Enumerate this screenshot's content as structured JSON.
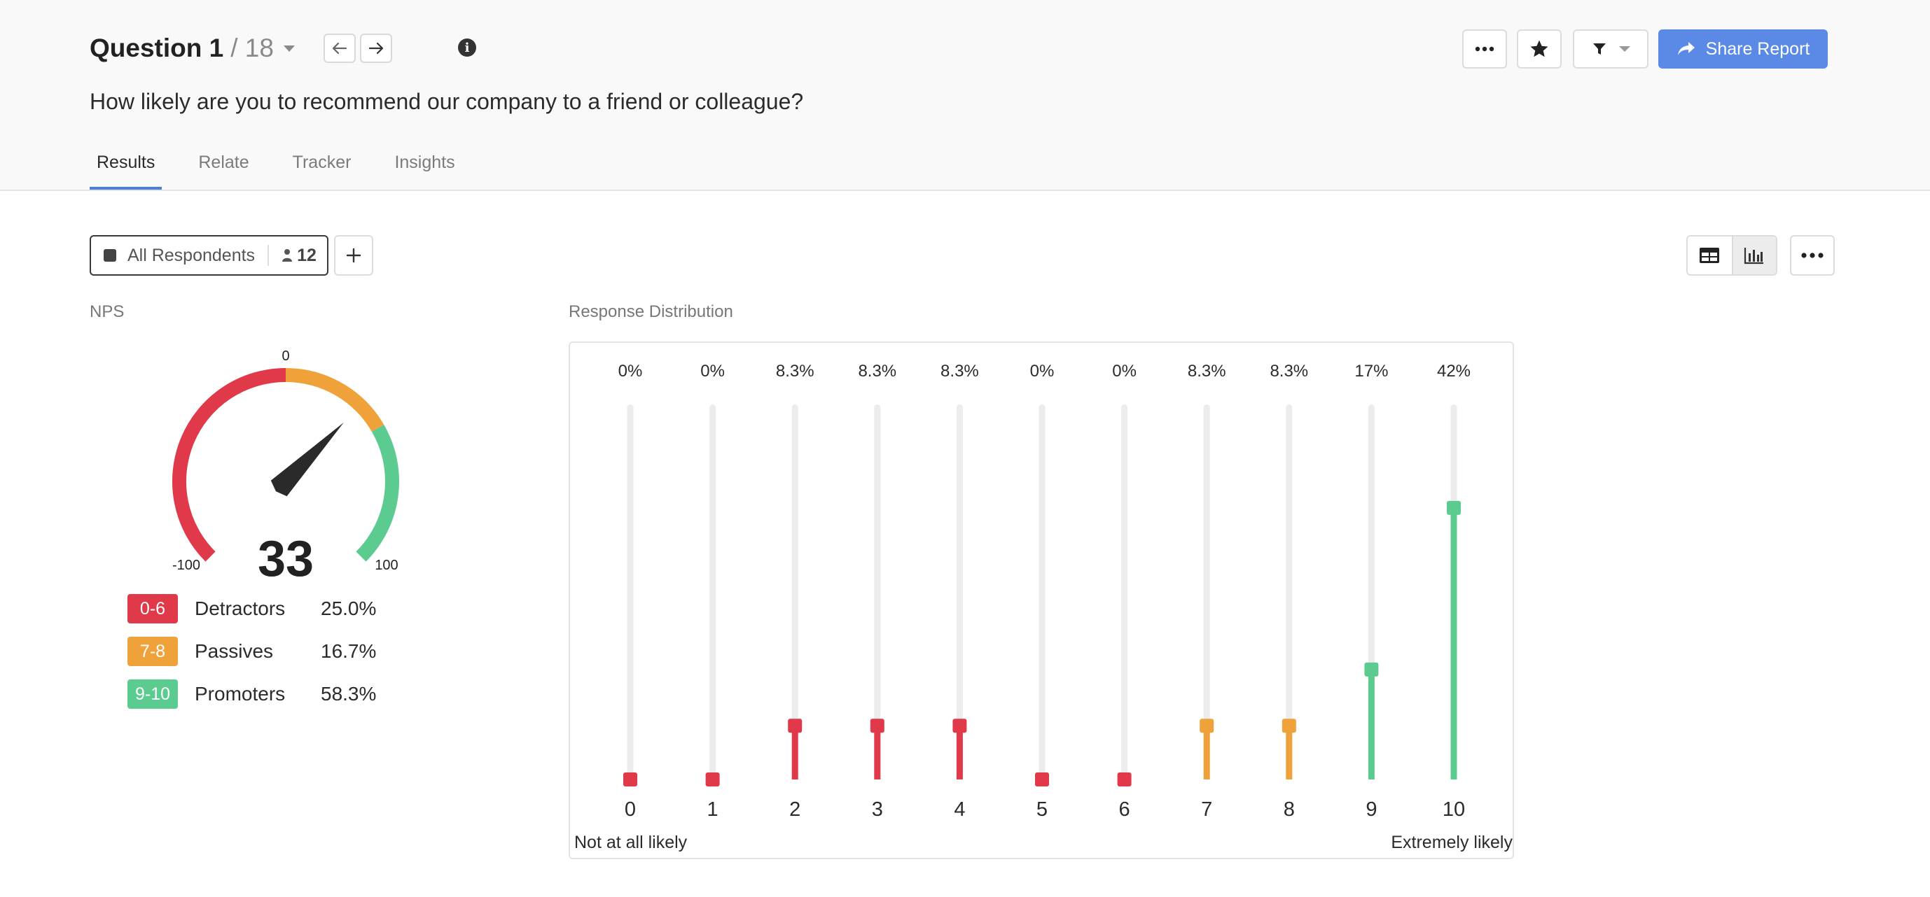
{
  "header": {
    "question_number": "Question 1",
    "question_total": "/ 18",
    "info_symbol": "i",
    "question_text": "How likely are you to recommend our company to a friend or colleague?",
    "share_label": "Share Report"
  },
  "tabs": [
    {
      "label": "Results",
      "active": true
    },
    {
      "label": "Relate",
      "active": false
    },
    {
      "label": "Tracker",
      "active": false
    },
    {
      "label": "Insights",
      "active": false
    }
  ],
  "segment": {
    "label": "All Respondents",
    "count": "12"
  },
  "nps": {
    "section_label": "NPS",
    "score": "33",
    "score_value": 33,
    "min_label": "-100",
    "mid_label": "0",
    "max_label": "100",
    "groups": [
      {
        "range": "0-6",
        "name": "Detractors",
        "pct": "25.0%",
        "color": "#e03a4a"
      },
      {
        "range": "7-8",
        "name": "Passives",
        "pct": "16.7%",
        "color": "#f0a23a"
      },
      {
        "range": "9-10",
        "name": "Promoters",
        "pct": "58.3%",
        "color": "#5ccb8f"
      }
    ]
  },
  "distribution": {
    "section_label": "Response Distribution",
    "low_label": "Not at all likely",
    "high_label": "Extremely likely"
  },
  "chart_data": {
    "type": "bar",
    "categories": [
      "0",
      "1",
      "2",
      "3",
      "4",
      "5",
      "6",
      "7",
      "8",
      "9",
      "10"
    ],
    "values": [
      0,
      0,
      8.3,
      8.3,
      8.3,
      0,
      0,
      8.3,
      8.3,
      17,
      42
    ],
    "value_labels": [
      "0%",
      "0%",
      "8.3%",
      "8.3%",
      "8.3%",
      "0%",
      "0%",
      "8.3%",
      "8.3%",
      "17%",
      "42%"
    ],
    "colors": [
      "#e03a4a",
      "#e03a4a",
      "#e03a4a",
      "#e03a4a",
      "#e03a4a",
      "#e03a4a",
      "#e03a4a",
      "#f0a23a",
      "#f0a23a",
      "#5ccb8f",
      "#5ccb8f"
    ],
    "ylim": [
      0,
      58
    ],
    "title": "Response Distribution",
    "xlabel": "",
    "ylabel": ""
  }
}
